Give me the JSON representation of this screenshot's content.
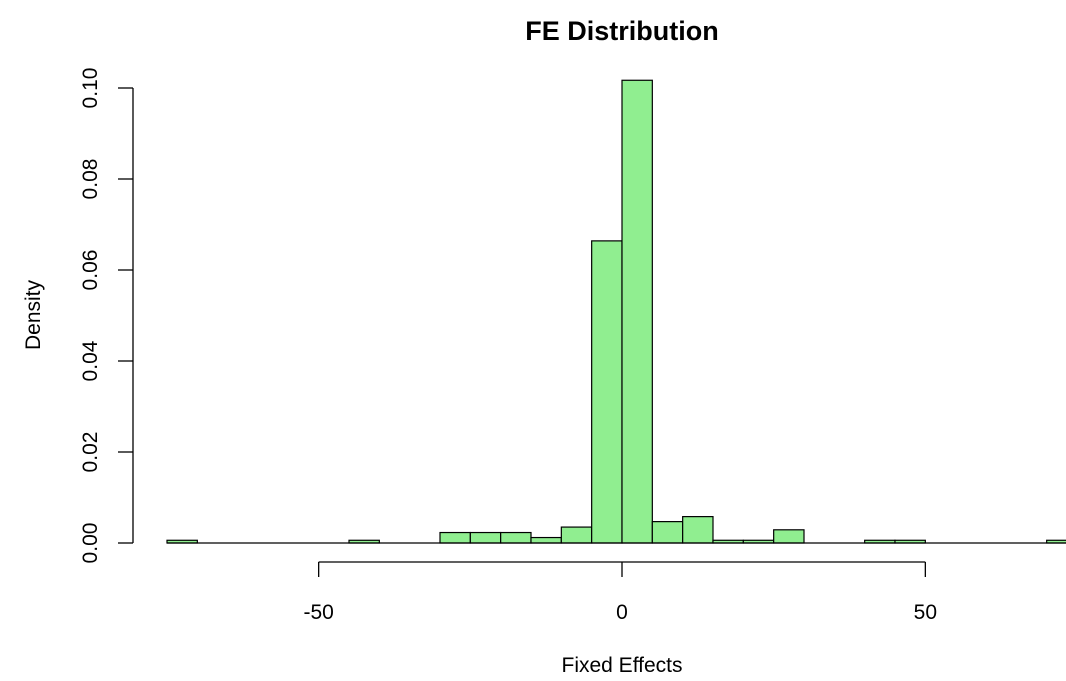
{
  "chart_data": {
    "type": "bar",
    "title": "FE Distribution",
    "xlabel": "Fixed Effects",
    "ylabel": "Density",
    "bar_color": "#90EE90",
    "border_color": "#000000",
    "bin_width": 5,
    "xlim": [
      -75,
      75
    ],
    "ylim": [
      0,
      0.1
    ],
    "x_ticks": [
      -50,
      0,
      50
    ],
    "x_tick_labels": [
      "-50",
      "0",
      "50"
    ],
    "x_axis_range": [
      -50,
      50
    ],
    "y_ticks": [
      0,
      0.02,
      0.04,
      0.06,
      0.08,
      0.1
    ],
    "y_tick_labels": [
      "0.00",
      "0.02",
      "0.04",
      "0.06",
      "0.08",
      "0.10"
    ],
    "bins": [
      {
        "from": -75,
        "to": -70,
        "density": 0.0006
      },
      {
        "from": -45,
        "to": -40,
        "density": 0.0006
      },
      {
        "from": -30,
        "to": -25,
        "density": 0.0023
      },
      {
        "from": -25,
        "to": -20,
        "density": 0.0023
      },
      {
        "from": -20,
        "to": -15,
        "density": 0.0023
      },
      {
        "from": -15,
        "to": -10,
        "density": 0.0012
      },
      {
        "from": -10,
        "to": -5,
        "density": 0.0035
      },
      {
        "from": -5,
        "to": 0,
        "density": 0.0664
      },
      {
        "from": 0,
        "to": 5,
        "density": 0.1017
      },
      {
        "from": 5,
        "to": 10,
        "density": 0.0047
      },
      {
        "from": 10,
        "to": 15,
        "density": 0.0058
      },
      {
        "from": 15,
        "to": 20,
        "density": 0.0006
      },
      {
        "from": 20,
        "to": 25,
        "density": 0.0006
      },
      {
        "from": 25,
        "to": 30,
        "density": 0.0029
      },
      {
        "from": 40,
        "to": 45,
        "density": 0.0006
      },
      {
        "from": 45,
        "to": 50,
        "density": 0.0006
      },
      {
        "from": 70,
        "to": 75,
        "density": 0.0006
      }
    ],
    "grid": false,
    "legend": "none"
  }
}
